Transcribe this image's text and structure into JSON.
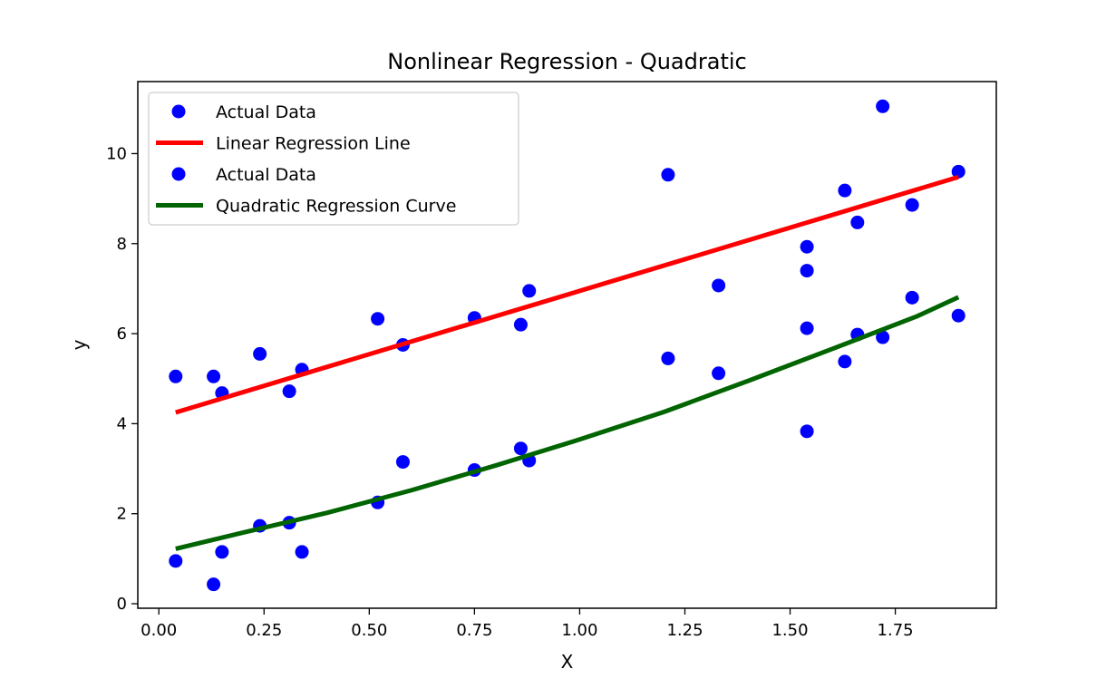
{
  "chart_data": {
    "type": "scatter",
    "title": "Nonlinear Regression - Quadratic",
    "xlabel": "X",
    "ylabel": "y",
    "xlim": [
      -0.05,
      1.99
    ],
    "ylim": [
      -0.1,
      11.6
    ],
    "xticks": [
      0.0,
      0.25,
      0.5,
      0.75,
      1.0,
      1.25,
      1.5,
      1.75
    ],
    "xtick_labels": [
      "0.00",
      "0.25",
      "0.50",
      "0.75",
      "1.00",
      "1.25",
      "1.50",
      "1.75"
    ],
    "yticks": [
      0,
      2,
      4,
      6,
      8,
      10
    ],
    "ytick_labels": [
      "0",
      "2",
      "4",
      "6",
      "8",
      "10"
    ],
    "grid": false,
    "legend_placement": "top-left",
    "series": [
      {
        "name": "Actual Data",
        "kind": "scatter",
        "color": "#0000ff",
        "x": [
          0.04,
          0.13,
          0.15,
          0.24,
          0.31,
          0.34,
          0.52,
          0.58,
          0.75,
          0.86,
          0.88,
          1.21,
          1.33,
          1.54,
          1.54,
          1.63,
          1.66,
          1.72,
          1.79,
          1.9
        ],
        "y": [
          5.05,
          5.05,
          4.68,
          5.55,
          4.72,
          5.2,
          6.33,
          5.75,
          6.35,
          6.2,
          6.95,
          9.53,
          7.07,
          7.93,
          7.4,
          9.18,
          8.47,
          11.05,
          8.86,
          9.6
        ]
      },
      {
        "name": "Linear Regression Line",
        "kind": "line",
        "color": "#ff0000",
        "x": [
          0.04,
          1.9
        ],
        "y": [
          4.25,
          9.48
        ]
      },
      {
        "name": "Actual Data",
        "kind": "scatter",
        "color": "#0000ff",
        "x": [
          0.04,
          0.13,
          0.15,
          0.24,
          0.31,
          0.34,
          0.52,
          0.58,
          0.75,
          0.86,
          0.88,
          1.21,
          1.33,
          1.54,
          1.54,
          1.63,
          1.66,
          1.72,
          1.79,
          1.9
        ],
        "y": [
          0.95,
          0.43,
          1.15,
          1.73,
          1.8,
          1.15,
          2.25,
          3.15,
          2.97,
          3.45,
          3.18,
          5.45,
          5.12,
          6.12,
          3.83,
          5.38,
          5.98,
          5.92,
          6.8,
          6.4
        ]
      },
      {
        "name": "Quadratic Regression Curve",
        "kind": "line",
        "color": "#006400",
        "x": [
          0.04,
          0.2,
          0.4,
          0.6,
          0.8,
          1.0,
          1.2,
          1.4,
          1.6,
          1.8,
          1.9
        ],
        "y": [
          1.22,
          1.58,
          2.02,
          2.52,
          3.07,
          3.65,
          4.26,
          4.95,
          5.66,
          6.38,
          6.81
        ]
      }
    ]
  }
}
